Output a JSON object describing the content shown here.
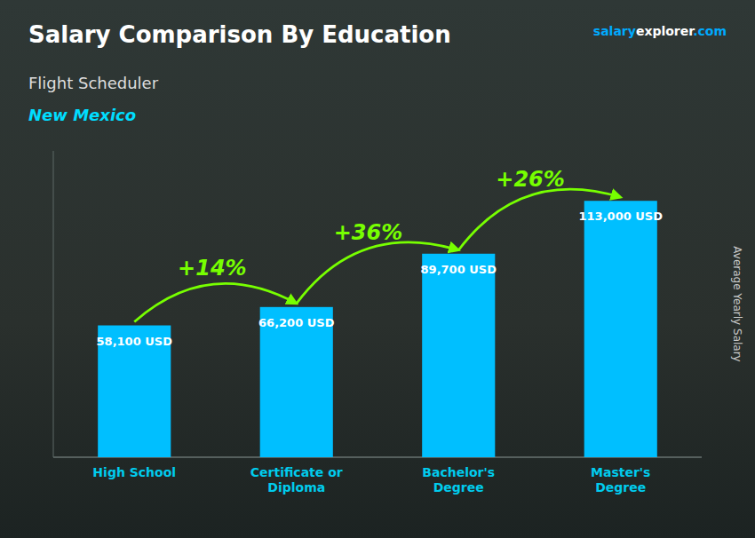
{
  "chart_data": {
    "type": "bar",
    "title": "Salary Comparison By Education",
    "subtitle": "Flight Scheduler",
    "location": "New Mexico",
    "ylabel": "Average Yearly Salary",
    "credit": [
      "salary",
      "explorer",
      ".com"
    ],
    "categories": [
      "High School",
      "Certificate or\nDiploma",
      "Bachelor's\nDegree",
      "Master's\nDegree"
    ],
    "values": [
      58100,
      66200,
      89700,
      113000
    ],
    "value_labels": [
      "58,100 USD",
      "66,200 USD",
      "89,700 USD",
      "113,000 USD"
    ],
    "data_labels": true,
    "annotations": [
      "+14%",
      "+36%",
      "+26%"
    ],
    "color": "#00BFFF",
    "ylim": [
      0,
      135000
    ],
    "yticks": [],
    "tick_labels": "x",
    "grid": false
  }
}
